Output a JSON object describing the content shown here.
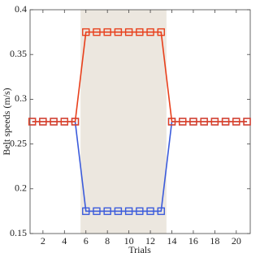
{
  "chart_data": {
    "type": "line",
    "x_label": "Trials",
    "y_label": "Belt speeds (m/s)",
    "x": [
      1,
      2,
      3,
      4,
      5,
      6,
      7,
      8,
      9,
      10,
      11,
      12,
      13,
      14,
      15,
      16,
      17,
      18,
      19,
      20,
      21
    ],
    "series": [
      {
        "color": "#3b5bdb",
        "values": [
          0.275,
          0.275,
          0.275,
          0.275,
          0.275,
          0.175,
          0.175,
          0.175,
          0.175,
          0.175,
          0.175,
          0.175,
          0.175,
          0.275,
          0.275,
          0.275,
          0.275,
          0.275,
          0.275,
          0.275,
          0.275
        ]
      },
      {
        "color": "#e8401c",
        "values": [
          0.275,
          0.275,
          0.275,
          0.275,
          0.275,
          0.375,
          0.375,
          0.375,
          0.375,
          0.375,
          0.375,
          0.375,
          0.375,
          0.275,
          0.275,
          0.275,
          0.275,
          0.275,
          0.275,
          0.275,
          0.275
        ]
      }
    ],
    "shaded_region": [
      5.5,
      13.5
    ],
    "shade_color": "#ece7df",
    "xlim": [
      0.8,
      21.3
    ],
    "xticks": [
      2,
      4,
      6,
      8,
      10,
      12,
      14,
      16,
      18,
      20
    ],
    "ylim": [
      0.15,
      0.4
    ],
    "yticks": [
      0.15,
      0.2,
      0.25,
      0.3,
      0.35,
      0.4
    ],
    "grid": false
  }
}
